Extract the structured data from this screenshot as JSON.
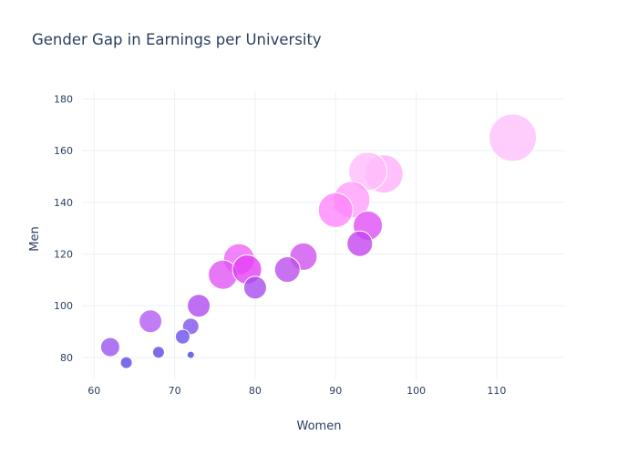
{
  "chart_data": {
    "type": "scatter",
    "title": "Gender Gap in Earnings per University",
    "xlabel": "Women",
    "ylabel": "Men",
    "xlim": [
      58.5,
      118.5
    ],
    "ylim": [
      71.5,
      183
    ],
    "xticks": [
      60,
      70,
      80,
      90,
      100,
      110
    ],
    "yticks": [
      80,
      100,
      120,
      140,
      160,
      180
    ],
    "grid": true,
    "points": [
      {
        "x": 96,
        "y": 151,
        "r": 21,
        "color": "#ffb0fb"
      },
      {
        "x": 94,
        "y": 152,
        "r": 21,
        "color": "#ffbcfb"
      },
      {
        "x": 112,
        "y": 165,
        "r": 26,
        "color": "#ffc0fb"
      },
      {
        "x": 92,
        "y": 141,
        "r": 20,
        "color": "#ff9dfb"
      },
      {
        "x": 90,
        "y": 137,
        "r": 19,
        "color": "#ff86fb"
      },
      {
        "x": 94,
        "y": 131,
        "r": 16,
        "color": "#e050f5"
      },
      {
        "x": 78,
        "y": 118,
        "r": 17,
        "color": "#ef64f8"
      },
      {
        "x": 76,
        "y": 112,
        "r": 16,
        "color": "#e055f5"
      },
      {
        "x": 79,
        "y": 114,
        "r": 16,
        "color": "#e440f5"
      },
      {
        "x": 86,
        "y": 119,
        "r": 15,
        "color": "#cf52f0"
      },
      {
        "x": 93,
        "y": 124,
        "r": 14,
        "color": "#c445ef"
      },
      {
        "x": 84,
        "y": 114,
        "r": 14,
        "color": "#bc4fee"
      },
      {
        "x": 80,
        "y": 107,
        "r": 12.5,
        "color": "#a94cee"
      },
      {
        "x": 73,
        "y": 100,
        "r": 12.5,
        "color": "#b04af0"
      },
      {
        "x": 67,
        "y": 94,
        "r": 12.5,
        "color": "#b35cf4"
      },
      {
        "x": 62,
        "y": 84,
        "r": 10.5,
        "color": "#9a55ee"
      },
      {
        "x": 72,
        "y": 92,
        "r": 9,
        "color": "#7f54ec"
      },
      {
        "x": 71,
        "y": 88,
        "r": 8,
        "color": "#6b4fe8"
      },
      {
        "x": 68,
        "y": 82,
        "r": 6.5,
        "color": "#5a4ae2"
      },
      {
        "x": 64,
        "y": 78,
        "r": 6.5,
        "color": "#5a4ae2"
      },
      {
        "x": 72,
        "y": 81,
        "r": 4,
        "color": "#4e44d8"
      }
    ]
  }
}
